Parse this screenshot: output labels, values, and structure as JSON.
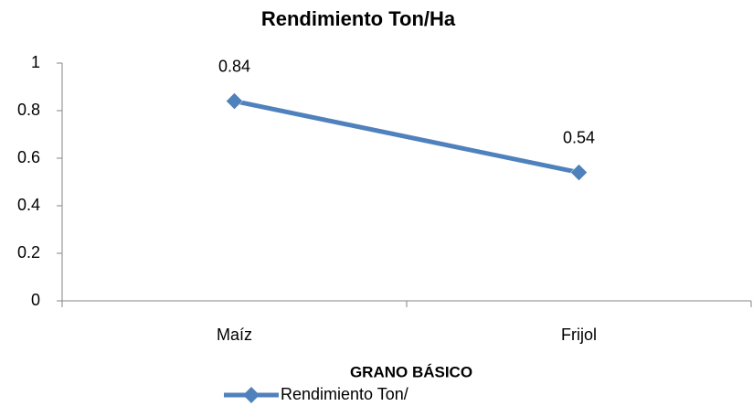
{
  "chart_data": {
    "type": "line",
    "title": "Rendimiento Ton/Ha",
    "x_label": "GRANO BÁSICO",
    "categories": [
      "Maíz",
      "Frijol"
    ],
    "series": [
      {
        "name": "Rendimiento Ton/",
        "color": "#4f81bd",
        "values": [
          0.84,
          0.54
        ]
      }
    ],
    "ylim": [
      0,
      1
    ],
    "yticks": [
      0,
      0.2,
      0.4,
      0.6,
      0.8,
      1
    ],
    "grid": false,
    "legend": "bottom"
  }
}
